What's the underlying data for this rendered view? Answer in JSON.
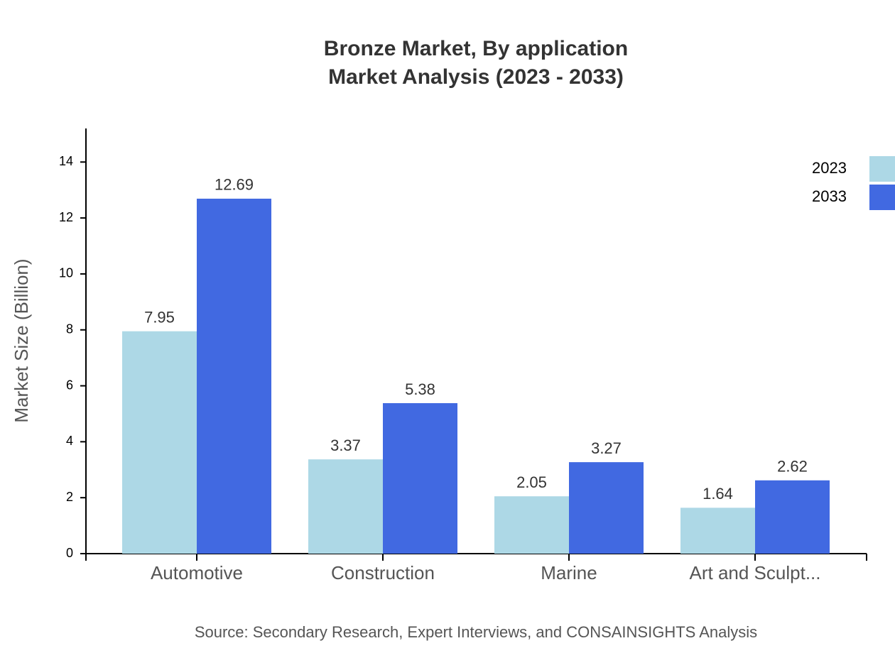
{
  "chart_data": {
    "type": "bar",
    "title": "Bronze Market, By application",
    "subtitle": "Market Analysis (2023 - 2033)",
    "y_label": "Market Size (Billion)",
    "source": "Source: Secondary Research, Expert Interviews, and CONSAINSIGHTS Analysis",
    "categories": [
      "Automotive",
      "Construction",
      "Marine",
      "Art and Sculpt..."
    ],
    "series": [
      {
        "name": "2023",
        "color": "#add8e6",
        "values": [
          7.95,
          3.37,
          2.05,
          1.64
        ]
      },
      {
        "name": "2033",
        "color": "#4169e1",
        "values": [
          12.69,
          5.38,
          3.27,
          2.62
        ]
      }
    ],
    "ylim": [
      0,
      15.2
    ],
    "yticks": [
      0,
      2,
      4,
      6,
      8,
      10,
      12,
      14
    ],
    "legend": "top-right"
  }
}
